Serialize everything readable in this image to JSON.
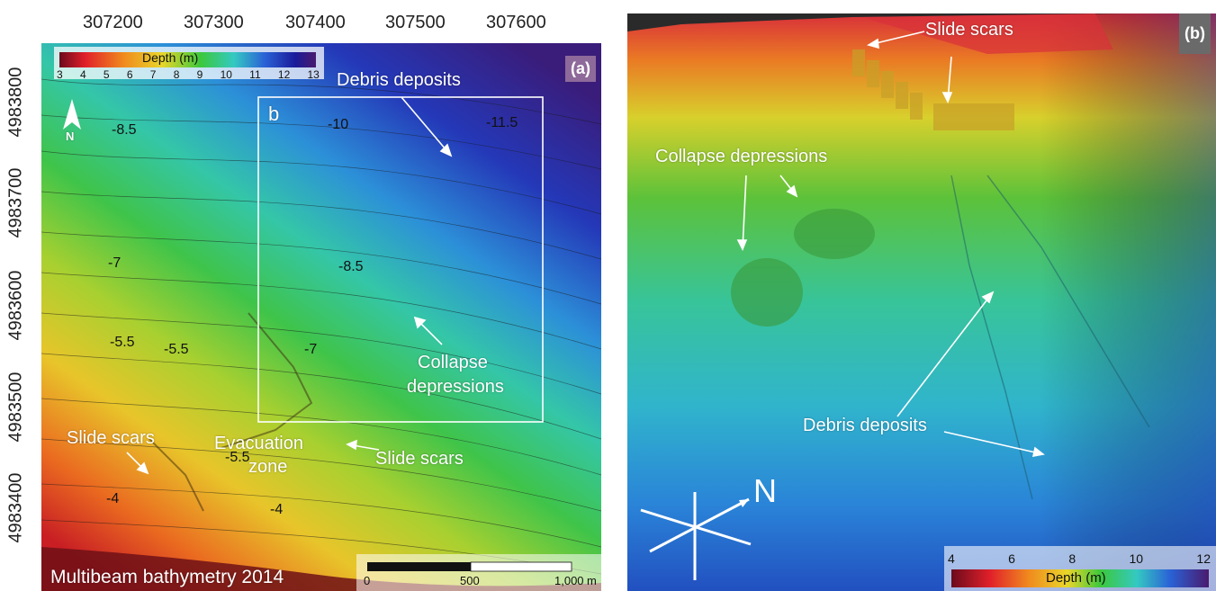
{
  "panel_a": {
    "tag": "(a)",
    "x_ticks": [
      "307200",
      "307300",
      "307400",
      "307500",
      "307600"
    ],
    "y_ticks": [
      "4983800",
      "4983700",
      "4983600",
      "4983500",
      "4983400"
    ],
    "legend": {
      "title": "Depth (m)",
      "ticks": [
        "3",
        "4",
        "5",
        "6",
        "7",
        "8",
        "9",
        "10",
        "11",
        "12",
        "13"
      ]
    },
    "north": "N",
    "box_label": "b",
    "labels": {
      "debris": "Debris deposits",
      "collapse_1": "Collapse",
      "collapse_2": "depressions",
      "slide_left": "Slide scars",
      "slide_right": "Slide scars",
      "evac_1": "Evacuation",
      "evac_2": "zone"
    },
    "contours": {
      "c1": "-8.5",
      "c2": "-10",
      "c3": "-11.5",
      "c4": "-8.5",
      "c5": "-7",
      "c6": "-7",
      "c7": "-5.5",
      "c8": "-5.5",
      "c9": "-5.5",
      "c10": "-4",
      "c11": "-4"
    },
    "caption": "Multibeam bathymetry 2014",
    "scalebar": {
      "ticks": [
        "0",
        "500",
        "1,000"
      ],
      "unit": "m"
    }
  },
  "panel_b": {
    "tag": "(b)",
    "labels": {
      "slide": "Slide scars",
      "collapse": "Collapse depressions",
      "debris": "Debris deposits"
    },
    "north": "N",
    "legend": {
      "title": "Depth (m)",
      "ticks": [
        "4",
        "6",
        "8",
        "10",
        "12"
      ]
    }
  },
  "colors": {
    "ramp": [
      "#6b0a1c",
      "#e0202a",
      "#f08a1e",
      "#e9d62a",
      "#3cc83c",
      "#34c9c2",
      "#2a62d6",
      "#1a1a9a",
      "#4a1a6e"
    ],
    "tag_bg": "#8e6a9a"
  }
}
